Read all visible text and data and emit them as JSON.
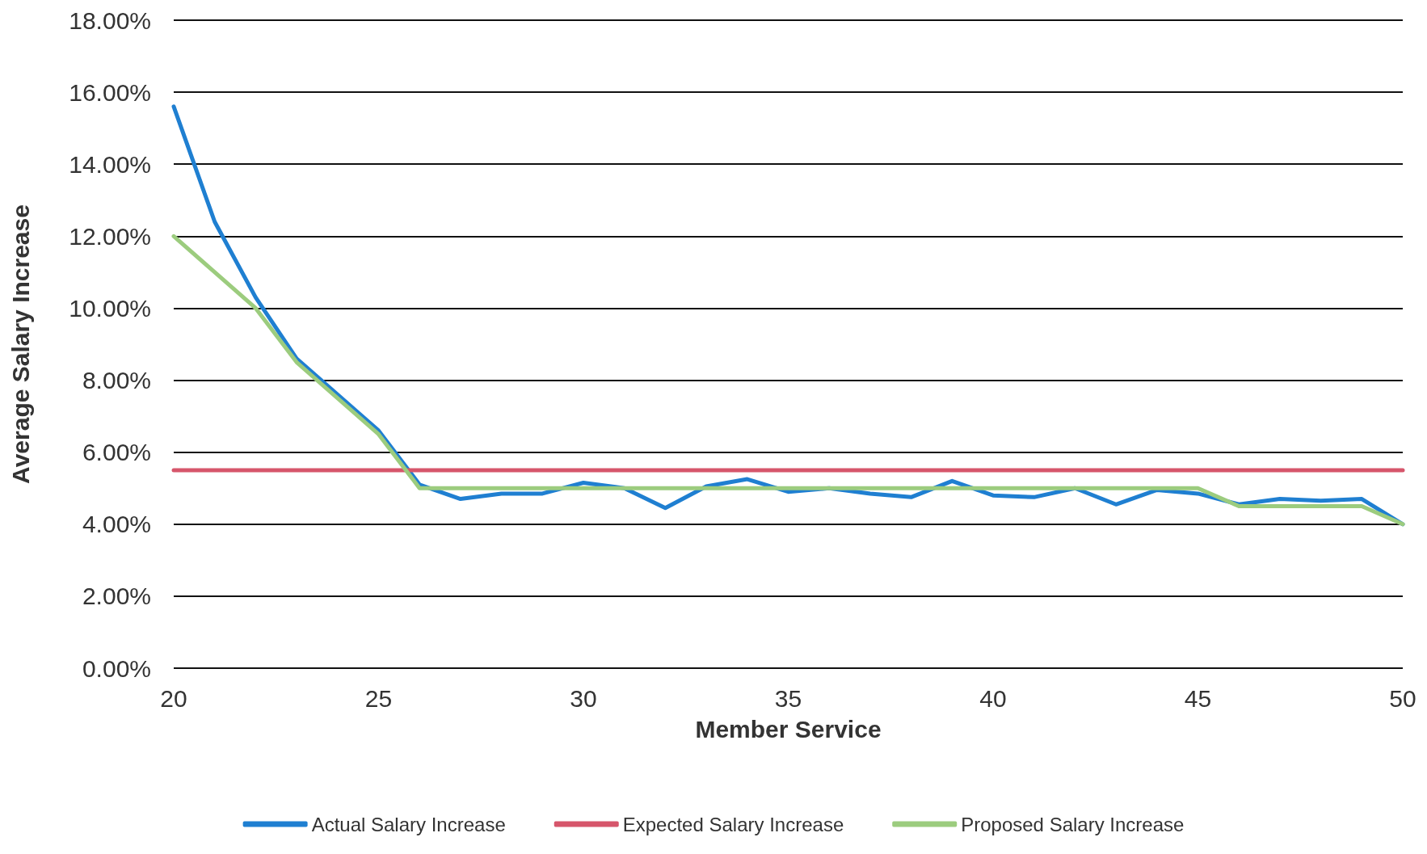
{
  "chart_data": {
    "type": "line",
    "xlabel": "Member Service",
    "ylabel": "Average Salary Increase",
    "x": [
      20,
      21,
      22,
      23,
      24,
      25,
      26,
      27,
      28,
      29,
      30,
      31,
      32,
      33,
      34,
      35,
      36,
      37,
      38,
      39,
      40,
      41,
      42,
      43,
      44,
      45,
      46,
      47,
      48,
      49,
      50
    ],
    "series": [
      {
        "name": "Actual Salary Increase",
        "color": "#1f7fd1",
        "values": [
          15.6,
          12.4,
          10.3,
          8.6,
          7.6,
          6.6,
          5.1,
          4.7,
          4.85,
          4.85,
          5.15,
          5.0,
          4.45,
          5.05,
          5.25,
          4.9,
          5.0,
          4.85,
          4.75,
          5.2,
          4.8,
          4.75,
          5.0,
          4.55,
          4.95,
          4.85,
          4.55,
          4.7,
          4.65,
          4.7,
          4.0
        ]
      },
      {
        "name": "Expected Salary Increase",
        "color": "#d6566b",
        "values": [
          5.5,
          5.5,
          5.5,
          5.5,
          5.5,
          5.5,
          5.5,
          5.5,
          5.5,
          5.5,
          5.5,
          5.5,
          5.5,
          5.5,
          5.5,
          5.5,
          5.5,
          5.5,
          5.5,
          5.5,
          5.5,
          5.5,
          5.5,
          5.5,
          5.5,
          5.5,
          5.5,
          5.5,
          5.5,
          5.5,
          5.5
        ]
      },
      {
        "name": "Proposed Salary Increase",
        "color": "#9ccc7e",
        "values": [
          12,
          11,
          10,
          8.5,
          7.5,
          6.5,
          5,
          5,
          5,
          5,
          5,
          5,
          5,
          5,
          5,
          5,
          5,
          5,
          5,
          5,
          5,
          5,
          5,
          5,
          5,
          5,
          4.5,
          4.5,
          4.5,
          4.5,
          4.0
        ]
      }
    ],
    "xlim": [
      20,
      50
    ],
    "xticks": [
      20,
      25,
      30,
      35,
      40,
      45,
      50
    ],
    "ylim": [
      0,
      18
    ],
    "yticks": [
      {
        "value": 0,
        "label": "0.00%"
      },
      {
        "value": 2,
        "label": "2.00%"
      },
      {
        "value": 4,
        "label": "4.00%"
      },
      {
        "value": 6,
        "label": "6.00%"
      },
      {
        "value": 8,
        "label": "8.00%"
      },
      {
        "value": 10,
        "label": "10.00%"
      },
      {
        "value": 12,
        "label": "12.00%"
      },
      {
        "value": 14,
        "label": "14.00%"
      },
      {
        "value": 16,
        "label": "16.00%"
      },
      {
        "value": 18,
        "label": "18.00%"
      }
    ],
    "grid": "y",
    "legend": "bottom",
    "marker": "none",
    "line_style": "solid"
  }
}
